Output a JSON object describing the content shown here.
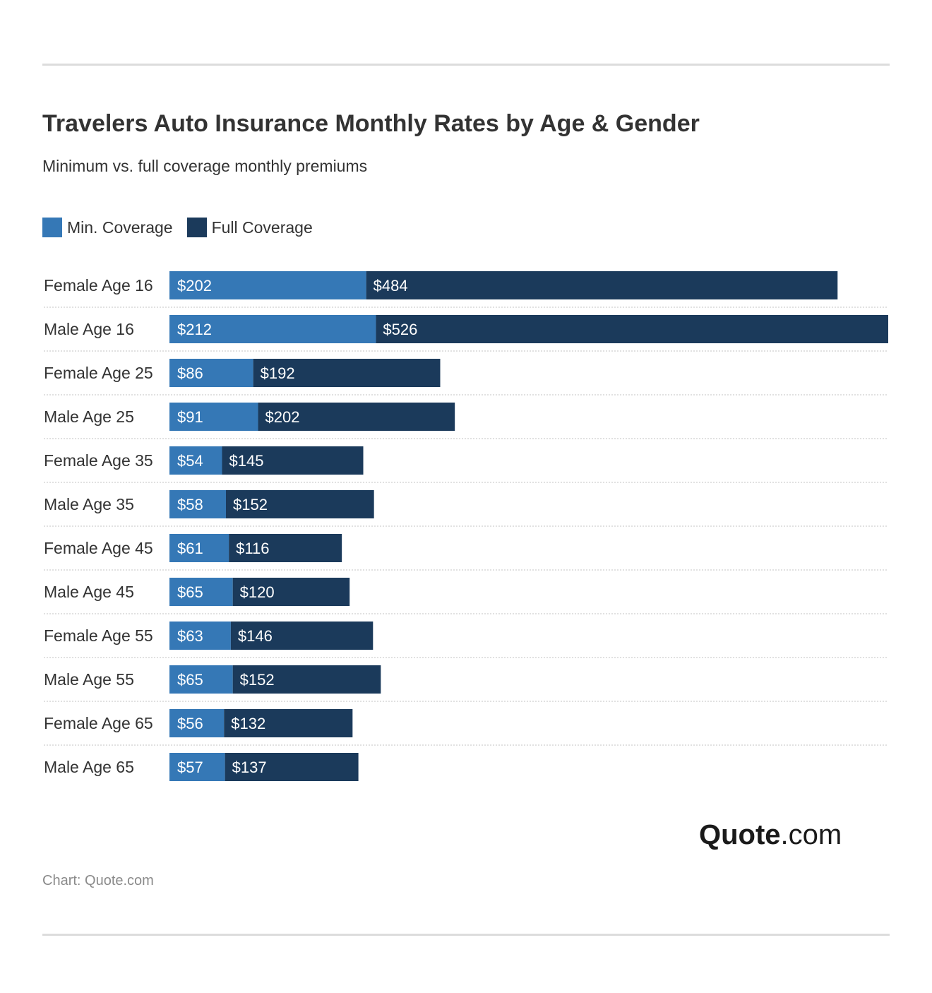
{
  "header": {
    "title": "Travelers Auto Insurance Monthly Rates by Age & Gender",
    "subtitle": "Minimum vs. full coverage monthly premiums"
  },
  "legend": {
    "items": [
      {
        "label": "Min. Coverage",
        "color": "#3578b6"
      },
      {
        "label": "Full Coverage",
        "color": "#1b3a5b"
      }
    ]
  },
  "chart_data": {
    "type": "bar",
    "orientation": "horizontal",
    "stacked": true,
    "title": "Travelers Auto Insurance Monthly Rates by Age & Gender",
    "subtitle": "Minimum vs. full coverage monthly premiums",
    "categories": [
      "Female Age 16",
      "Male Age 16",
      "Female Age 25",
      "Male Age 25",
      "Female Age 35",
      "Male Age 35",
      "Female Age 45",
      "Male Age 45",
      "Female Age 55",
      "Male Age 55",
      "Female Age 65",
      "Male Age 65"
    ],
    "series": [
      {
        "name": "Min. Coverage",
        "color": "#3578b6",
        "values": [
          202,
          212,
          86,
          91,
          54,
          58,
          61,
          65,
          63,
          65,
          56,
          57
        ]
      },
      {
        "name": "Full Coverage",
        "color": "#1b3a5b",
        "values": [
          484,
          526,
          192,
          202,
          145,
          152,
          116,
          120,
          146,
          152,
          132,
          137
        ]
      }
    ],
    "value_prefix": "$",
    "grid": false,
    "legend_position": "top-left"
  },
  "brand": {
    "logo_bold": "Quote",
    "logo_rest": ".com"
  },
  "footer": {
    "source": "Chart: Quote.com"
  }
}
